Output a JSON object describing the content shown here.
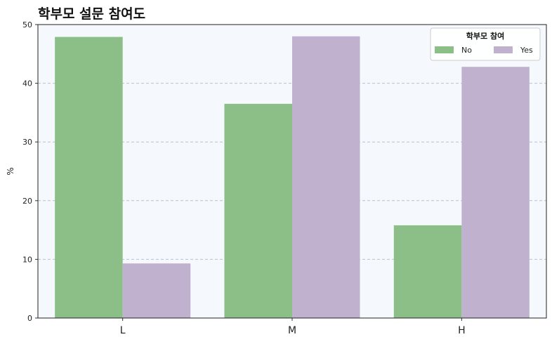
{
  "chart_data": {
    "type": "bar",
    "title": "학부모 설문 참여도",
    "xlabel": "",
    "ylabel": "%",
    "categories": [
      "L",
      "M",
      "H"
    ],
    "ylim": [
      0,
      50
    ],
    "yticks": [
      "0",
      "10",
      "20",
      "30",
      "40",
      "50"
    ],
    "grid": true,
    "legend_title": "학부모 참여",
    "legend_position": "top-right",
    "series": [
      {
        "name": "No",
        "color": "#8cbf87",
        "values": [
          47.9,
          36.5,
          15.8
        ]
      },
      {
        "name": "Yes",
        "color": "#c0b2cf",
        "values": [
          9.3,
          48.0,
          42.8
        ]
      }
    ],
    "plot_background": "#f5f9fe"
  }
}
